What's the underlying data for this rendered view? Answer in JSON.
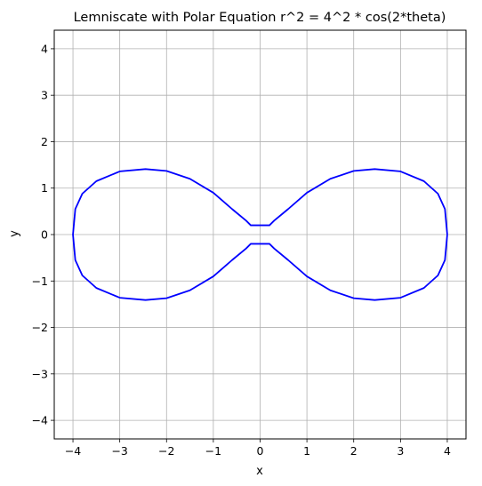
{
  "chart_data": {
    "type": "line",
    "title": "Lemniscate with Polar Equation r^2 = 4^2 * cos(2*theta)",
    "xlabel": "x",
    "ylabel": "y",
    "xlim": [
      -4.4,
      4.4
    ],
    "ylim": [
      -4.4,
      4.4
    ],
    "xticks": [
      -4,
      -3,
      -2,
      -1,
      0,
      1,
      2,
      3,
      4
    ],
    "yticks": [
      -4,
      -3,
      -2,
      -1,
      0,
      1,
      2,
      3,
      4
    ],
    "xtick_labels": [
      "−4",
      "−3",
      "−2",
      "−1",
      "0",
      "1",
      "2",
      "3",
      "4"
    ],
    "ytick_labels": [
      "−4",
      "−3",
      "−2",
      "−1",
      "0",
      "1",
      "2",
      "3",
      "4"
    ],
    "grid": true,
    "series": [
      {
        "equation": "r^2 = a^2 cos(2 theta)",
        "a": 4,
        "color": "#0000ff",
        "points": [
          [
            4.0,
            0.0
          ],
          [
            3.95,
            0.55
          ],
          [
            3.8,
            0.88
          ],
          [
            3.5,
            1.15
          ],
          [
            3.0,
            1.36
          ],
          [
            2.45,
            1.41
          ],
          [
            2.0,
            1.37
          ],
          [
            1.5,
            1.2
          ],
          [
            1.0,
            0.9
          ],
          [
            0.6,
            0.55
          ],
          [
            0.3,
            0.3
          ],
          [
            0.2,
            0.2
          ],
          [
            -0.2,
            0.2
          ],
          [
            -0.3,
            0.3
          ],
          [
            -0.6,
            0.55
          ],
          [
            -1.0,
            0.9
          ],
          [
            -1.5,
            1.2
          ],
          [
            -2.0,
            1.37
          ],
          [
            -2.45,
            1.41
          ],
          [
            -3.0,
            1.36
          ],
          [
            -3.5,
            1.15
          ],
          [
            -3.8,
            0.88
          ],
          [
            -3.95,
            0.55
          ],
          [
            -4.0,
            0.0
          ],
          [
            -3.95,
            -0.55
          ],
          [
            -3.8,
            -0.88
          ],
          [
            -3.5,
            -1.15
          ],
          [
            -3.0,
            -1.36
          ],
          [
            -2.45,
            -1.41
          ],
          [
            -2.0,
            -1.37
          ],
          [
            -1.5,
            -1.2
          ],
          [
            -1.0,
            -0.9
          ],
          [
            -0.6,
            -0.55
          ],
          [
            -0.3,
            -0.3
          ],
          [
            -0.2,
            -0.2
          ],
          [
            0.2,
            -0.2
          ],
          [
            0.3,
            -0.3
          ],
          [
            0.6,
            -0.55
          ],
          [
            1.0,
            -0.9
          ],
          [
            1.5,
            -1.2
          ],
          [
            2.0,
            -1.37
          ],
          [
            2.45,
            -1.41
          ],
          [
            3.0,
            -1.36
          ],
          [
            3.5,
            -1.15
          ],
          [
            3.8,
            -0.88
          ],
          [
            3.95,
            -0.55
          ],
          [
            4.0,
            0.0
          ]
        ]
      }
    ]
  },
  "colors": {
    "line": "#0000ff",
    "grid": "#b0b0b0",
    "axes": "#000000"
  }
}
